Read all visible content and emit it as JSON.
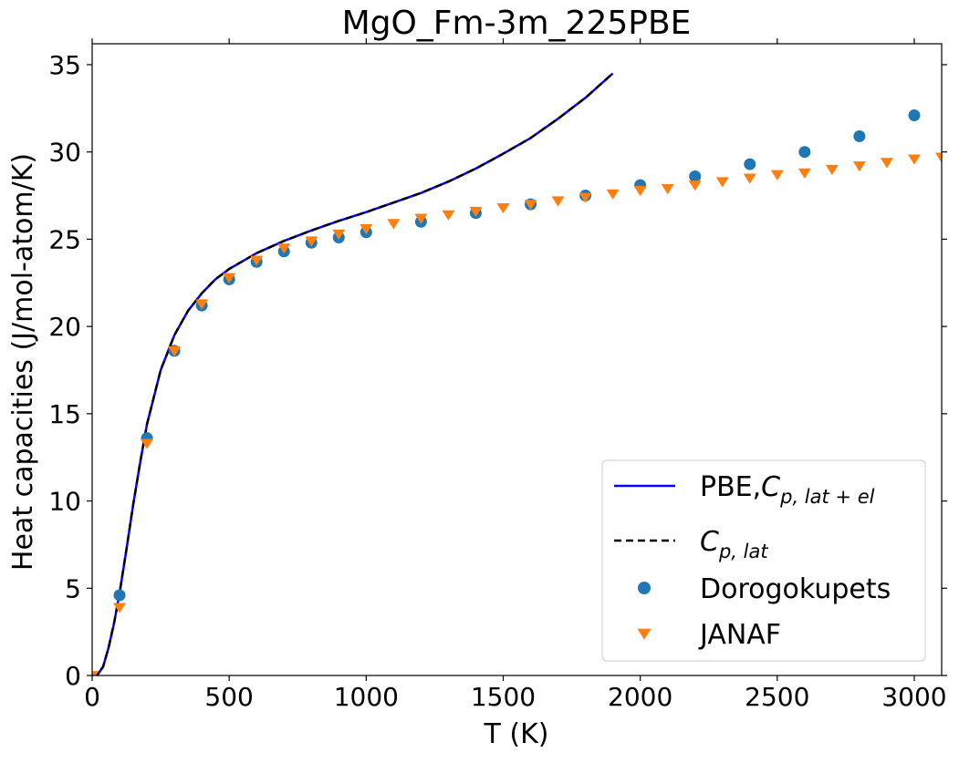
{
  "chart_data": {
    "type": "line",
    "title": "MgO_Fm-3m_225PBE",
    "xlabel": "T (K)",
    "ylabel": "Heat capacities (J/mol-atom/K)",
    "xlim": [
      0,
      3100
    ],
    "ylim": [
      0,
      36.2
    ],
    "xticks": [
      0,
      500,
      1000,
      1500,
      2000,
      2500,
      3000
    ],
    "yticks": [
      0,
      5,
      10,
      15,
      20,
      25,
      30,
      35
    ],
    "grid": false,
    "legend_position": "lower-right",
    "colors": {
      "pbe": "#0000ff",
      "lat": "#000000",
      "dorogokupets": "#1f77b4",
      "janaf": "#ff7f0e"
    },
    "series": [
      {
        "name": "PBE,C_{p,lat+el}",
        "legend_main": "PBE,",
        "legend_sym": "C",
        "legend_sub": "p, lat + el",
        "kind": "line",
        "style": "solid",
        "x": [
          0,
          20,
          40,
          60,
          80,
          100,
          125,
          150,
          175,
          200,
          250,
          300,
          350,
          400,
          450,
          500,
          600,
          700,
          800,
          900,
          1000,
          1100,
          1200,
          1300,
          1400,
          1500,
          1600,
          1700,
          1800,
          1900
        ],
        "y": [
          0,
          0.05,
          0.5,
          1.6,
          3.0,
          4.7,
          7.2,
          9.8,
          12.2,
          14.4,
          17.5,
          19.5,
          20.9,
          21.9,
          22.7,
          23.3,
          24.2,
          24.9,
          25.5,
          26.05,
          26.55,
          27.1,
          27.65,
          28.3,
          29.05,
          29.9,
          30.8,
          31.9,
          33.1,
          34.5
        ]
      },
      {
        "name": "C_{p,lat}",
        "legend_main": "",
        "legend_sym": "C",
        "legend_sub": "p, lat",
        "kind": "line",
        "style": "dashed",
        "x": [
          0,
          20,
          40,
          60,
          80,
          100,
          125,
          150,
          175,
          200,
          250,
          300,
          350,
          400,
          450,
          500,
          600,
          700,
          800,
          900,
          1000,
          1100,
          1200,
          1300,
          1400,
          1500,
          1600,
          1700,
          1800,
          1900
        ],
        "y": [
          0,
          0.05,
          0.5,
          1.6,
          3.0,
          4.7,
          7.2,
          9.8,
          12.2,
          14.4,
          17.5,
          19.5,
          20.9,
          21.9,
          22.7,
          23.3,
          24.2,
          24.9,
          25.5,
          26.05,
          26.55,
          27.1,
          27.65,
          28.3,
          29.05,
          29.9,
          30.8,
          31.9,
          33.1,
          34.5
        ]
      },
      {
        "name": "Dorogokupets",
        "kind": "scatter",
        "marker": "circle",
        "x": [
          100,
          200,
          300,
          400,
          500,
          600,
          700,
          800,
          900,
          1000,
          1200,
          1400,
          1600,
          1800,
          2000,
          2200,
          2400,
          2600,
          2800,
          3000
        ],
        "y": [
          4.6,
          13.6,
          18.6,
          21.2,
          22.7,
          23.7,
          24.3,
          24.8,
          25.1,
          25.4,
          26.0,
          26.5,
          27.0,
          27.5,
          28.1,
          28.6,
          29.3,
          30.0,
          30.9,
          32.1
        ]
      },
      {
        "name": "JANAF",
        "kind": "scatter",
        "marker": "triangle-down",
        "x": [
          0,
          100,
          200,
          300,
          400,
          500,
          600,
          700,
          800,
          900,
          1000,
          1100,
          1200,
          1300,
          1400,
          1500,
          1600,
          1700,
          1800,
          1900,
          2000,
          2100,
          2200,
          2300,
          2400,
          2500,
          2600,
          2700,
          2800,
          2900,
          3000,
          3100
        ],
        "y": [
          0,
          3.9,
          13.3,
          18.6,
          21.3,
          22.8,
          23.8,
          24.5,
          24.9,
          25.3,
          25.6,
          25.9,
          26.2,
          26.4,
          26.6,
          26.8,
          27.0,
          27.2,
          27.4,
          27.6,
          27.8,
          27.9,
          28.1,
          28.3,
          28.5,
          28.7,
          28.8,
          29.0,
          29.2,
          29.4,
          29.6,
          29.7
        ]
      }
    ]
  }
}
